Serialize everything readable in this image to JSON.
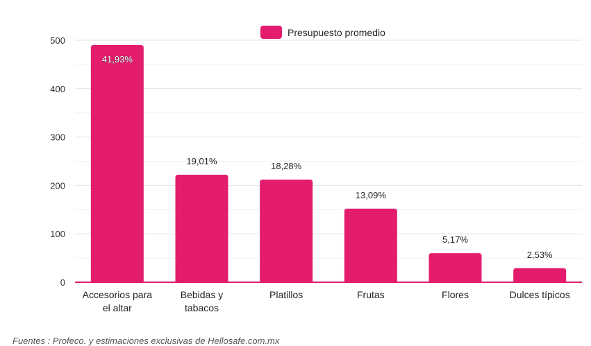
{
  "chart_data": {
    "type": "bar",
    "categories": [
      [
        "Accesorios para",
        "el altar"
      ],
      [
        "Bebidas y",
        "tabacos"
      ],
      [
        "Platillos"
      ],
      [
        "Frutas"
      ],
      [
        "Flores"
      ],
      [
        "Dulces típicos"
      ]
    ],
    "series": [
      {
        "name": "Presupuesto promedio",
        "values": [
          490,
          222,
          212,
          152,
          60,
          29
        ],
        "data_labels": [
          "41,93%",
          "19,01%",
          "18,28%",
          "13,09%",
          "5,17%",
          "2,53%"
        ]
      }
    ],
    "ylim": [
      0,
      500
    ],
    "yticks": [
      0,
      100,
      200,
      300,
      400,
      500
    ],
    "grid": true,
    "legend_position": "top",
    "bar_color": "#e31c6e"
  },
  "legend": {
    "label": "Presupuesto promedio"
  },
  "footer": "Fuentes : Profeco. y estimaciones exclusivas de Hellosafe.com.mx"
}
